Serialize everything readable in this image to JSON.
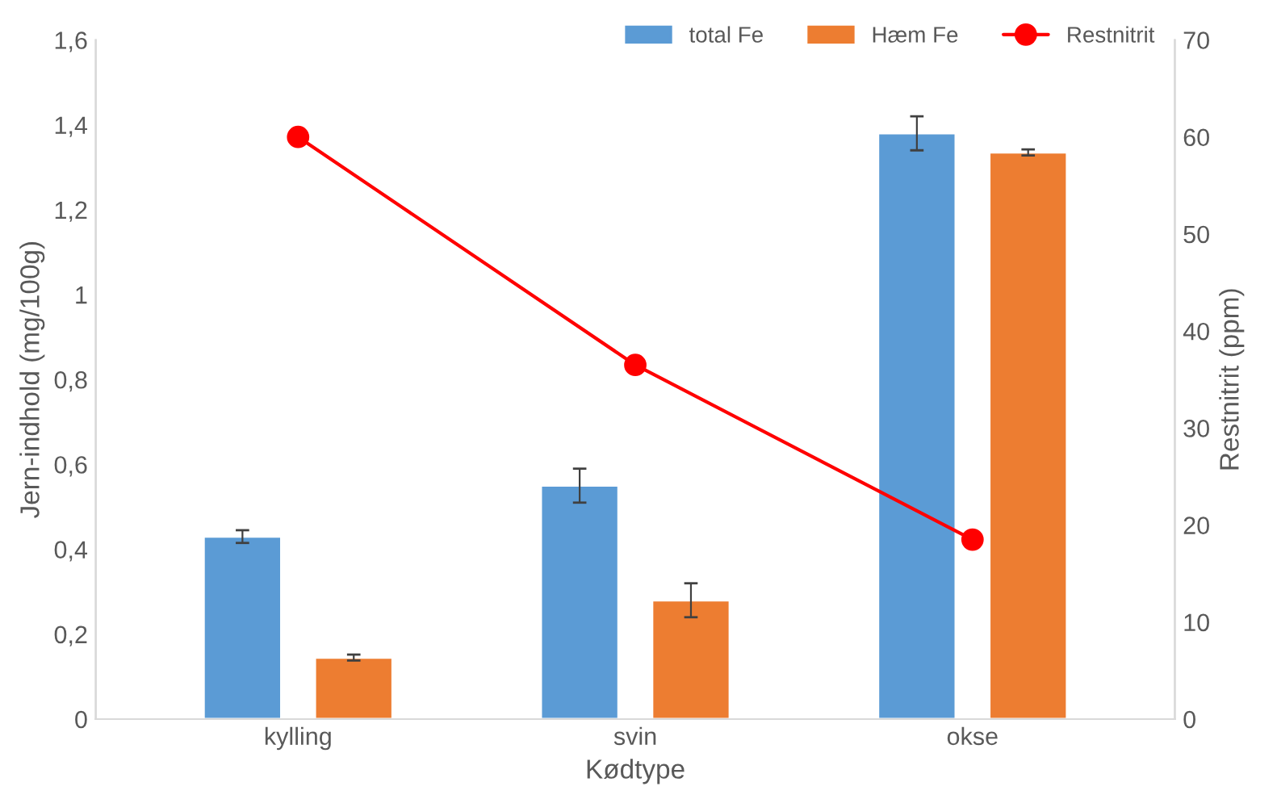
{
  "chart_data": {
    "type": "bar",
    "xlabel": "Kødtype",
    "ylabel": "Jern-indhold (mg/100g)",
    "y2label": "Restnitrit (ppm)",
    "categories": [
      "kylling",
      "svin",
      "okse"
    ],
    "series": [
      {
        "name": "total Fe",
        "color": "#5b9bd5",
        "values": [
          0.43,
          0.55,
          1.38
        ],
        "errors": [
          0.015,
          0.04,
          0.04
        ]
      },
      {
        "name": "Hæm Fe",
        "color": "#ed7d31",
        "values": [
          0.145,
          0.28,
          1.335
        ],
        "errors": [
          0.007,
          0.04,
          0.007
        ]
      },
      {
        "name": "Restnitrit",
        "type": "line",
        "axis": "y2",
        "color": "#ff0000",
        "marker": "circle",
        "values": [
          60,
          36.5,
          18.5
        ]
      }
    ],
    "ylim": [
      0,
      1.6
    ],
    "yticks": [
      0,
      {
        "value": 0.2,
        "label": "0,2"
      },
      {
        "value": 0.4,
        "label": "0,4"
      },
      {
        "value": 0.6,
        "label": "0,6"
      },
      {
        "value": 0.8,
        "label": "0,8"
      },
      1,
      {
        "value": 1.2,
        "label": "1,2"
      },
      {
        "value": 1.4,
        "label": "1,4"
      },
      {
        "value": 1.6,
        "label": "1,6"
      }
    ],
    "y2lim": [
      0,
      70
    ],
    "y2ticks": [
      0,
      10,
      20,
      30,
      40,
      50,
      60,
      70
    ],
    "grid": false,
    "legend": "top right"
  }
}
